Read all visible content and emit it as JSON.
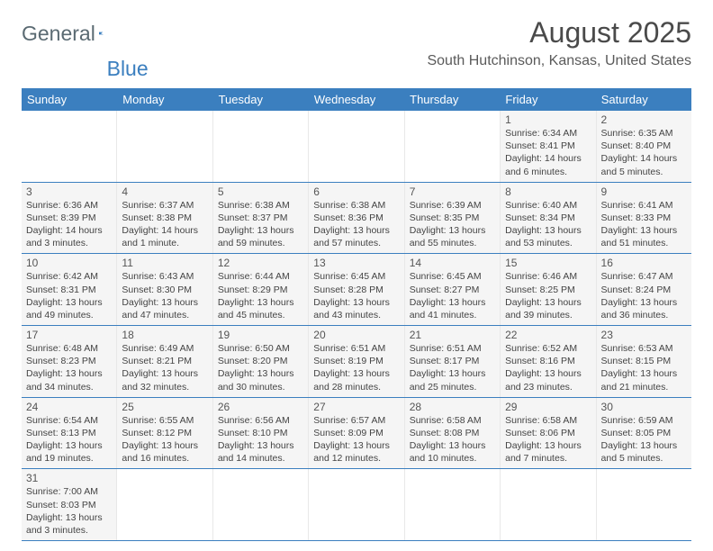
{
  "brand": {
    "part1": "General",
    "part2": "Blue"
  },
  "title": "August 2025",
  "location": "South Hutchinson, Kansas, United States",
  "colors": {
    "accent": "#3b7fbf",
    "cell_bg": "#f5f5f5",
    "text": "#444444",
    "header_text": "#ffffff"
  },
  "day_headers": [
    "Sunday",
    "Monday",
    "Tuesday",
    "Wednesday",
    "Thursday",
    "Friday",
    "Saturday"
  ],
  "weeks": [
    [
      null,
      null,
      null,
      null,
      null,
      {
        "n": "1",
        "sr": "6:34 AM",
        "ss": "8:41 PM",
        "dl": "14 hours and 6 minutes."
      },
      {
        "n": "2",
        "sr": "6:35 AM",
        "ss": "8:40 PM",
        "dl": "14 hours and 5 minutes."
      }
    ],
    [
      {
        "n": "3",
        "sr": "6:36 AM",
        "ss": "8:39 PM",
        "dl": "14 hours and 3 minutes."
      },
      {
        "n": "4",
        "sr": "6:37 AM",
        "ss": "8:38 PM",
        "dl": "14 hours and 1 minute."
      },
      {
        "n": "5",
        "sr": "6:38 AM",
        "ss": "8:37 PM",
        "dl": "13 hours and 59 minutes."
      },
      {
        "n": "6",
        "sr": "6:38 AM",
        "ss": "8:36 PM",
        "dl": "13 hours and 57 minutes."
      },
      {
        "n": "7",
        "sr": "6:39 AM",
        "ss": "8:35 PM",
        "dl": "13 hours and 55 minutes."
      },
      {
        "n": "8",
        "sr": "6:40 AM",
        "ss": "8:34 PM",
        "dl": "13 hours and 53 minutes."
      },
      {
        "n": "9",
        "sr": "6:41 AM",
        "ss": "8:33 PM",
        "dl": "13 hours and 51 minutes."
      }
    ],
    [
      {
        "n": "10",
        "sr": "6:42 AM",
        "ss": "8:31 PM",
        "dl": "13 hours and 49 minutes."
      },
      {
        "n": "11",
        "sr": "6:43 AM",
        "ss": "8:30 PM",
        "dl": "13 hours and 47 minutes."
      },
      {
        "n": "12",
        "sr": "6:44 AM",
        "ss": "8:29 PM",
        "dl": "13 hours and 45 minutes."
      },
      {
        "n": "13",
        "sr": "6:45 AM",
        "ss": "8:28 PM",
        "dl": "13 hours and 43 minutes."
      },
      {
        "n": "14",
        "sr": "6:45 AM",
        "ss": "8:27 PM",
        "dl": "13 hours and 41 minutes."
      },
      {
        "n": "15",
        "sr": "6:46 AM",
        "ss": "8:25 PM",
        "dl": "13 hours and 39 minutes."
      },
      {
        "n": "16",
        "sr": "6:47 AM",
        "ss": "8:24 PM",
        "dl": "13 hours and 36 minutes."
      }
    ],
    [
      {
        "n": "17",
        "sr": "6:48 AM",
        "ss": "8:23 PM",
        "dl": "13 hours and 34 minutes."
      },
      {
        "n": "18",
        "sr": "6:49 AM",
        "ss": "8:21 PM",
        "dl": "13 hours and 32 minutes."
      },
      {
        "n": "19",
        "sr": "6:50 AM",
        "ss": "8:20 PM",
        "dl": "13 hours and 30 minutes."
      },
      {
        "n": "20",
        "sr": "6:51 AM",
        "ss": "8:19 PM",
        "dl": "13 hours and 28 minutes."
      },
      {
        "n": "21",
        "sr": "6:51 AM",
        "ss": "8:17 PM",
        "dl": "13 hours and 25 minutes."
      },
      {
        "n": "22",
        "sr": "6:52 AM",
        "ss": "8:16 PM",
        "dl": "13 hours and 23 minutes."
      },
      {
        "n": "23",
        "sr": "6:53 AM",
        "ss": "8:15 PM",
        "dl": "13 hours and 21 minutes."
      }
    ],
    [
      {
        "n": "24",
        "sr": "6:54 AM",
        "ss": "8:13 PM",
        "dl": "13 hours and 19 minutes."
      },
      {
        "n": "25",
        "sr": "6:55 AM",
        "ss": "8:12 PM",
        "dl": "13 hours and 16 minutes."
      },
      {
        "n": "26",
        "sr": "6:56 AM",
        "ss": "8:10 PM",
        "dl": "13 hours and 14 minutes."
      },
      {
        "n": "27",
        "sr": "6:57 AM",
        "ss": "8:09 PM",
        "dl": "13 hours and 12 minutes."
      },
      {
        "n": "28",
        "sr": "6:58 AM",
        "ss": "8:08 PM",
        "dl": "13 hours and 10 minutes."
      },
      {
        "n": "29",
        "sr": "6:58 AM",
        "ss": "8:06 PM",
        "dl": "13 hours and 7 minutes."
      },
      {
        "n": "30",
        "sr": "6:59 AM",
        "ss": "8:05 PM",
        "dl": "13 hours and 5 minutes."
      }
    ],
    [
      {
        "n": "31",
        "sr": "7:00 AM",
        "ss": "8:03 PM",
        "dl": "13 hours and 3 minutes."
      },
      null,
      null,
      null,
      null,
      null,
      null
    ]
  ],
  "labels": {
    "sunrise": "Sunrise: ",
    "sunset": "Sunset: ",
    "daylight": "Daylight: "
  }
}
